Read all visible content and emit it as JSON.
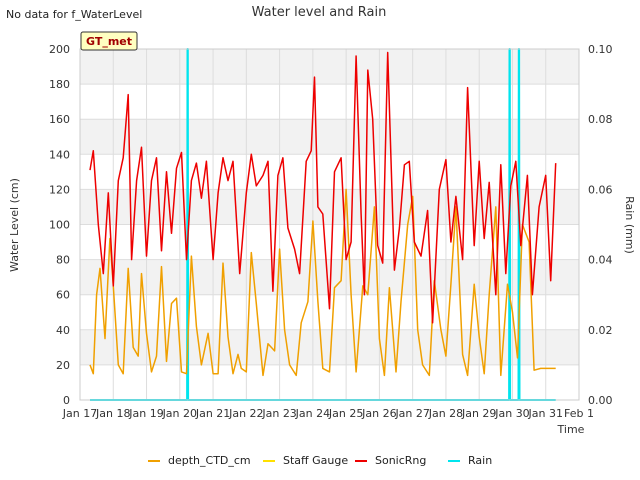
{
  "no_data_note": "No data for f_WaterLevel",
  "site_badge": "GT_met",
  "chart_data": {
    "type": "line",
    "title": "Water level and Rain",
    "xlabel": "Time",
    "ylabel": "Water Level (cm)",
    "y2label": "Rain (mm)",
    "xlim": [
      17,
      32
    ],
    "ylim": [
      0,
      200
    ],
    "y2lim": [
      0,
      0.1
    ],
    "x_ticks": [
      17,
      18,
      19,
      20,
      21,
      22,
      23,
      24,
      25,
      26,
      27,
      28,
      29,
      30,
      31,
      32
    ],
    "x_tick_labels": [
      "Jan 17",
      "Jan 18",
      "Jan 19",
      "Jan 20",
      "Jan 21",
      "Jan 22",
      "Jan 23",
      "Jan 24",
      "Jan 25",
      "Jan 26",
      "Jan 27",
      "Jan 28",
      "Jan 29",
      "Jan 30",
      "Jan 31",
      "Feb 1"
    ],
    "y_ticks": [
      0,
      20,
      40,
      60,
      80,
      100,
      120,
      140,
      160,
      180,
      200
    ],
    "y2_ticks": [
      0.0,
      0.02,
      0.04,
      0.06,
      0.08,
      0.1
    ],
    "y2_tick_labels": [
      "0.00",
      "0.02",
      "0.04",
      "0.06",
      "0.08",
      "0.10"
    ],
    "grid": true,
    "legend_position": "bottom",
    "series": [
      {
        "name": "depth_CTD_cm",
        "color": "#f0a000",
        "axis": "left",
        "x": [
          17.3,
          17.4,
          17.5,
          17.6,
          17.75,
          17.9,
          18.0,
          18.15,
          18.3,
          18.45,
          18.6,
          18.75,
          18.85,
          19.0,
          19.15,
          19.3,
          19.45,
          19.6,
          19.75,
          19.9,
          20.05,
          20.2,
          20.35,
          20.5,
          20.65,
          20.85,
          21.0,
          21.15,
          21.3,
          21.45,
          21.6,
          21.75,
          21.85,
          22.0,
          22.15,
          22.3,
          22.5,
          22.65,
          22.85,
          23.0,
          23.15,
          23.3,
          23.5,
          23.65,
          23.85,
          24.0,
          24.15,
          24.3,
          24.5,
          24.65,
          24.85,
          25.0,
          25.15,
          25.3,
          25.5,
          25.65,
          25.85,
          26.0,
          26.15,
          26.3,
          26.5,
          26.65,
          26.85,
          27.0,
          27.15,
          27.3,
          27.5,
          27.65,
          27.85,
          28.0,
          28.15,
          28.3,
          28.5,
          28.65,
          28.85,
          29.0,
          29.15,
          29.3,
          29.5,
          29.65,
          29.85,
          30.0,
          30.15,
          30.3,
          30.5,
          30.65,
          30.85,
          31.0,
          31.15,
          31.3
        ],
        "y": [
          20,
          15,
          60,
          75,
          35,
          92,
          65,
          20,
          15,
          75,
          30,
          25,
          72,
          38,
          16,
          25,
          76,
          22,
          55,
          58,
          16,
          15,
          82,
          42,
          20,
          38,
          15,
          15,
          78,
          36,
          15,
          26,
          18,
          16,
          84,
          55,
          14,
          32,
          28,
          86,
          40,
          20,
          14,
          44,
          56,
          102,
          56,
          18,
          16,
          64,
          68,
          120,
          60,
          16,
          65,
          60,
          110,
          35,
          14,
          64,
          16,
          56,
          100,
          116,
          40,
          20,
          14,
          68,
          40,
          25,
          66,
          110,
          26,
          14,
          66,
          36,
          15,
          60,
          110,
          14,
          66,
          50,
          24,
          100,
          90,
          17,
          18,
          18,
          18,
          18
        ]
      },
      {
        "name": "Staff Gauge",
        "color": "#ffe000",
        "axis": "left",
        "x": [],
        "y": []
      },
      {
        "name": "SonicRng",
        "color": "#ee0000",
        "axis": "left",
        "x": [
          17.3,
          17.4,
          17.55,
          17.7,
          17.85,
          18.0,
          18.15,
          18.3,
          18.45,
          18.55,
          18.7,
          18.85,
          19.0,
          19.15,
          19.3,
          19.45,
          19.6,
          19.75,
          19.9,
          20.05,
          20.2,
          20.35,
          20.5,
          20.65,
          20.8,
          21.0,
          21.15,
          21.3,
          21.45,
          21.6,
          21.8,
          22.0,
          22.15,
          22.3,
          22.5,
          22.65,
          22.8,
          22.95,
          23.1,
          23.25,
          23.45,
          23.6,
          23.8,
          23.95,
          24.05,
          24.15,
          24.3,
          24.5,
          24.65,
          24.85,
          25.0,
          25.15,
          25.3,
          25.45,
          25.55,
          25.65,
          25.8,
          25.95,
          26.1,
          26.25,
          26.45,
          26.6,
          26.75,
          26.9,
          27.05,
          27.25,
          27.45,
          27.6,
          27.8,
          28.0,
          28.15,
          28.3,
          28.5,
          28.65,
          28.85,
          29.0,
          29.15,
          29.3,
          29.5,
          29.65,
          29.8,
          29.95,
          30.1,
          30.25,
          30.45,
          30.6,
          30.8,
          31.0,
          31.15,
          31.3
        ],
        "y": [
          131,
          142,
          100,
          72,
          118,
          65,
          125,
          138,
          174,
          80,
          125,
          144,
          82,
          125,
          138,
          85,
          130,
          95,
          132,
          141,
          80,
          125,
          135,
          115,
          136,
          80,
          118,
          138,
          125,
          136,
          72,
          118,
          140,
          122,
          128,
          136,
          62,
          128,
          138,
          98,
          86,
          72,
          136,
          142,
          184,
          110,
          106,
          52,
          130,
          138,
          80,
          90,
          196,
          106,
          60,
          188,
          160,
          88,
          78,
          198,
          74,
          98,
          134,
          136,
          90,
          82,
          108,
          44,
          120,
          137,
          90,
          116,
          80,
          178,
          88,
          136,
          92,
          124,
          60,
          134,
          72,
          122,
          136,
          88,
          128,
          60,
          110,
          128,
          68,
          135
        ]
      },
      {
        "name": "Rain",
        "color": "#00e5ee",
        "axis": "right",
        "x": [
          17.3,
          20.22,
          20.23,
          20.24,
          20.25,
          29.9,
          29.91,
          29.92,
          29.93,
          30.18,
          30.19,
          30.2,
          30.21,
          31.3
        ],
        "y": [
          0.0,
          0.0,
          0.1,
          0.1,
          0.0,
          0.0,
          0.1,
          0.1,
          0.0,
          0.0,
          0.1,
          0.1,
          0.0,
          0.0
        ]
      }
    ]
  }
}
